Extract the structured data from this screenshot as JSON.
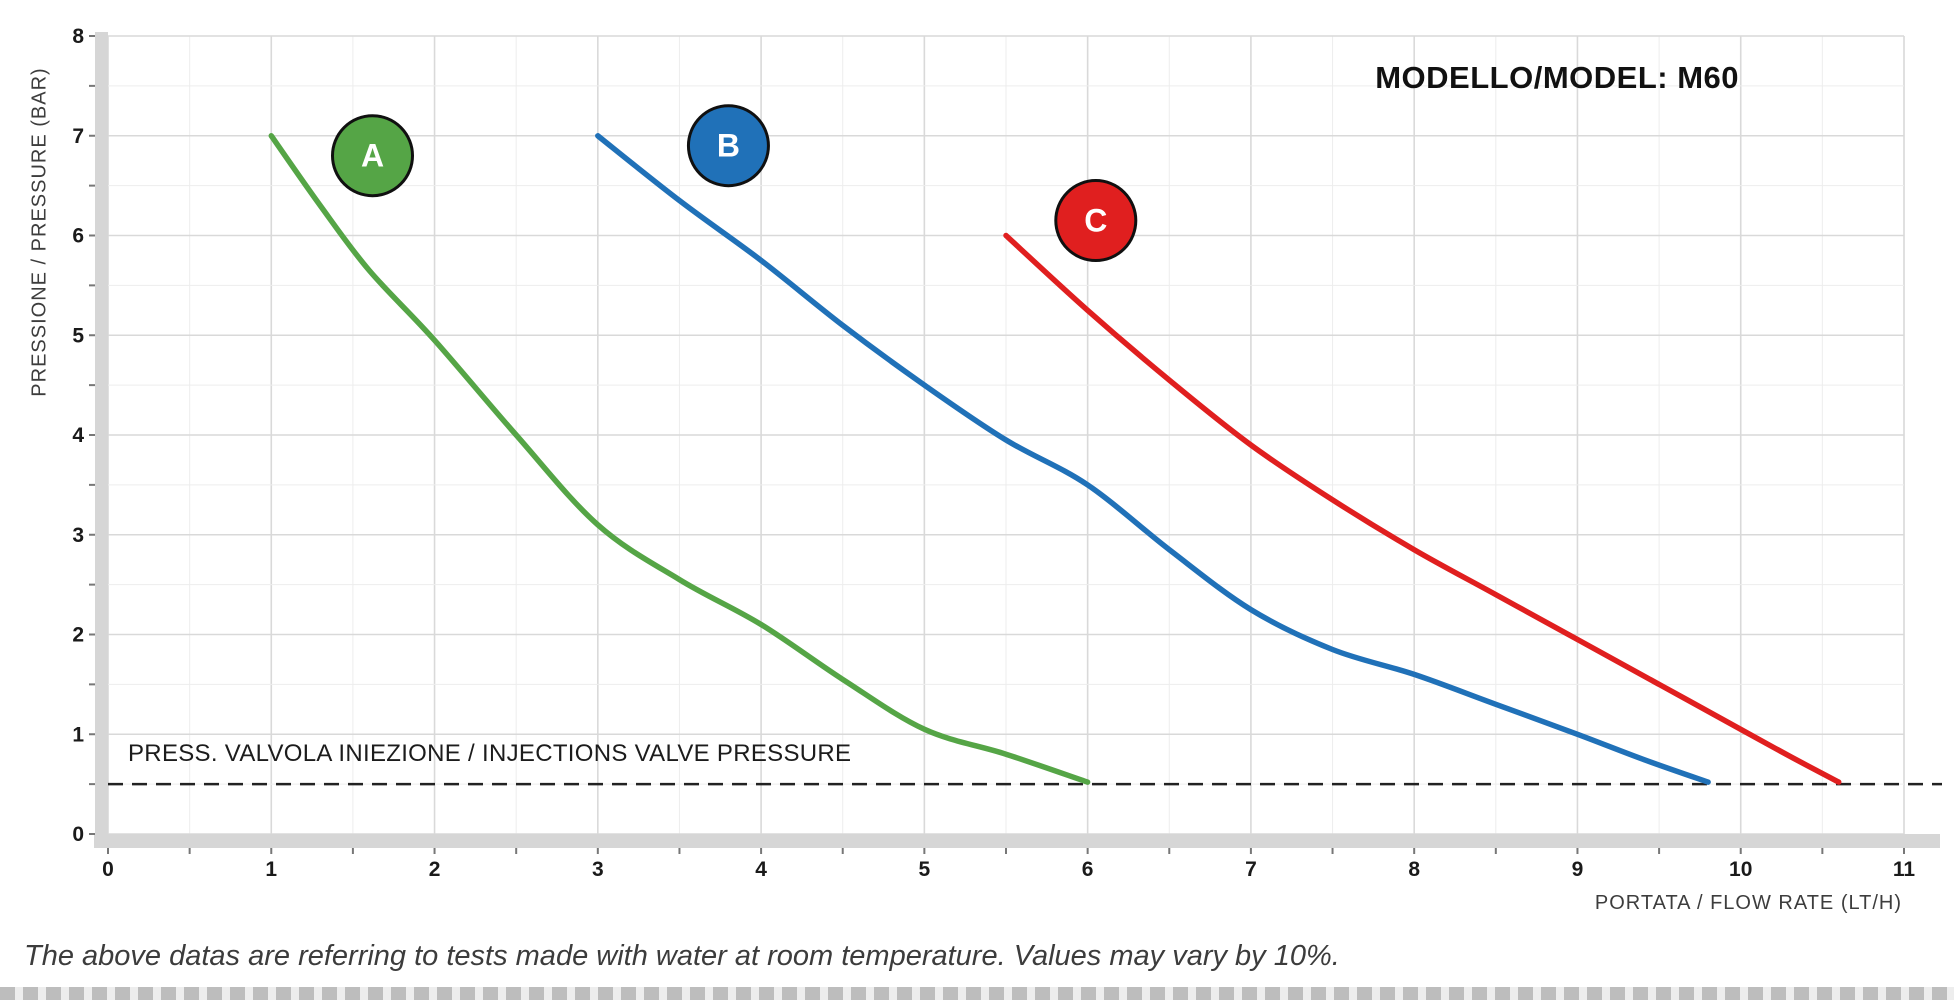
{
  "caption": "The above datas are referring to tests made with water at room temperature. Values may vary by 10%.",
  "chart_data": {
    "type": "line",
    "title": "MODELLO/MODEL: M60",
    "xlabel": "PORTATA / FLOW RATE (LT/H)",
    "ylabel": "PRESSIONE / PRESSURE (BAR)",
    "xlim": [
      0,
      11
    ],
    "ylim": [
      0,
      8
    ],
    "x_ticks": [
      0,
      1,
      2,
      3,
      4,
      5,
      6,
      7,
      8,
      9,
      10,
      11
    ],
    "y_ticks": [
      0,
      1,
      2,
      3,
      4,
      5,
      6,
      7,
      8
    ],
    "grid": true,
    "legend_position": "badges-on-curves",
    "reference_line": {
      "y": 0.5,
      "label": "PRESS. VALVOLA INIEZIONE / INJECTIONS VALVE PRESSURE",
      "style": "dashed",
      "color": "#222222"
    },
    "series": [
      {
        "name": "A",
        "color": "#55a546",
        "badge": {
          "x": 1.62,
          "y": 6.8
        },
        "points": [
          [
            1,
            7
          ],
          [
            1.3,
            6.3
          ],
          [
            1.6,
            5.65
          ],
          [
            2,
            4.95
          ],
          [
            2.5,
            4.0
          ],
          [
            3,
            3.1
          ],
          [
            3.5,
            2.55
          ],
          [
            4,
            2.1
          ],
          [
            4.5,
            1.55
          ],
          [
            5,
            1.05
          ],
          [
            5.5,
            0.8
          ],
          [
            6,
            0.52
          ]
        ]
      },
      {
        "name": "B",
        "color": "#2071b8",
        "badge": {
          "x": 3.8,
          "y": 6.9
        },
        "points": [
          [
            3,
            7
          ],
          [
            3.5,
            6.35
          ],
          [
            4,
            5.75
          ],
          [
            4.5,
            5.1
          ],
          [
            5,
            4.5
          ],
          [
            5.5,
            3.95
          ],
          [
            6,
            3.5
          ],
          [
            6.5,
            2.85
          ],
          [
            7,
            2.25
          ],
          [
            7.5,
            1.85
          ],
          [
            8,
            1.6
          ],
          [
            8.5,
            1.3
          ],
          [
            9,
            1.0
          ],
          [
            9.4,
            0.75
          ],
          [
            9.8,
            0.52
          ]
        ]
      },
      {
        "name": "C",
        "color": "#e01f1f",
        "badge": {
          "x": 6.05,
          "y": 6.15
        },
        "points": [
          [
            5.5,
            6
          ],
          [
            6,
            5.25
          ],
          [
            6.5,
            4.55
          ],
          [
            7,
            3.9
          ],
          [
            7.5,
            3.35
          ],
          [
            8,
            2.85
          ],
          [
            8.5,
            2.4
          ],
          [
            9,
            1.95
          ],
          [
            9.5,
            1.5
          ],
          [
            10,
            1.05
          ],
          [
            10.3,
            0.78
          ],
          [
            10.6,
            0.52
          ]
        ]
      }
    ]
  }
}
